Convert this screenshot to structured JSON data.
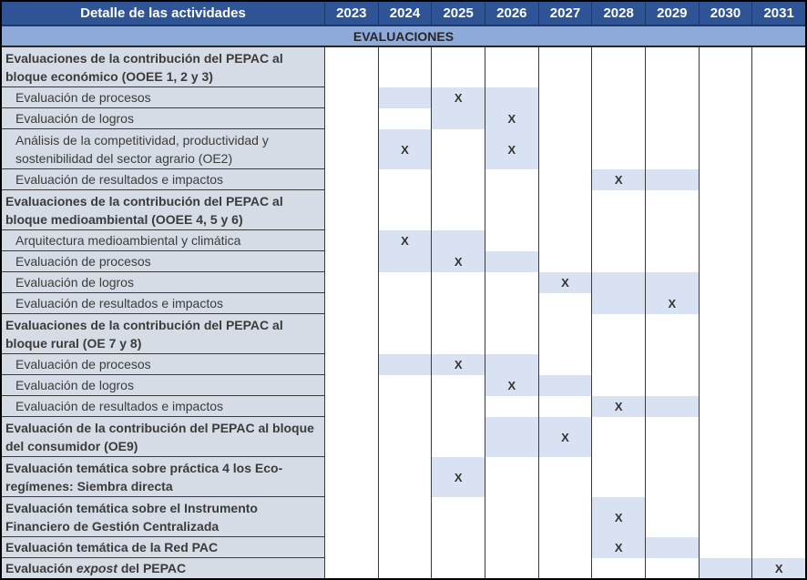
{
  "colors": {
    "header_background": "#2F5496",
    "header_text": "#FFFFFF",
    "section_background": "#8EAADB",
    "label_column_background": "#D6DCE5",
    "planned_cell_background": "#D9E2F3",
    "grid_line": "#3A3A3A",
    "body_text": "#3B3B3B"
  },
  "table": {
    "header": {
      "label": "Detalle de las actividades",
      "years": [
        "2023",
        "2024",
        "2025",
        "2026",
        "2027",
        "2028",
        "2029",
        "2030",
        "2031"
      ]
    },
    "section_title": "EVALUACIONES",
    "x_mark": "X",
    "rows": [
      {
        "label": "Evaluaciones de la contribución del PEPAC al bloque económico (OOEE 1, 2 y 3)",
        "type": "group",
        "lines": 2,
        "cells": {}
      },
      {
        "label": "Evaluación de procesos",
        "type": "item",
        "lines": 1,
        "cells": {
          "2024": "shade",
          "2025": "x",
          "2026": "shade"
        }
      },
      {
        "label": "Evaluación de logros",
        "type": "item",
        "lines": 1,
        "cells": {
          "2025": "shade",
          "2026": "x"
        }
      },
      {
        "label": "Análisis de la competitividad, productividad y sostenibilidad del sector agrario (OE2)",
        "type": "item",
        "lines": 2,
        "cells": {
          "2024": "x",
          "2026": "x"
        }
      },
      {
        "label": "Evaluación de resultados e impactos",
        "type": "item",
        "lines": 1,
        "cells": {
          "2028": "x",
          "2029": "shade"
        }
      },
      {
        "label": "Evaluaciones de la contribución del PEPAC al bloque medioambiental (OOEE 4, 5 y 6)",
        "type": "group",
        "lines": 2,
        "cells": {}
      },
      {
        "label": "Arquitectura medioambiental y climática",
        "type": "item",
        "lines": 1,
        "cells": {
          "2024": "x",
          "2025": "shade"
        }
      },
      {
        "label": "Evaluación de procesos",
        "type": "item",
        "lines": 1,
        "cells": {
          "2024": "shade",
          "2025": "x",
          "2026": "shade"
        }
      },
      {
        "label": "Evaluación de logros",
        "type": "item",
        "lines": 1,
        "cells": {
          "2027": "x",
          "2028": "shade",
          "2029": "shade"
        }
      },
      {
        "label": "Evaluación de resultados e impactos",
        "type": "item",
        "lines": 1,
        "cells": {
          "2028": "shade",
          "2029": "x"
        }
      },
      {
        "label": "Evaluaciones de la contribución del PEPAC al bloque rural (OE 7 y 8)",
        "type": "group",
        "lines": 2,
        "cells": {}
      },
      {
        "label": "Evaluación de procesos",
        "type": "item",
        "lines": 1,
        "cells": {
          "2024": "shade",
          "2025": "x",
          "2026": "shade"
        }
      },
      {
        "label": "Evaluación de logros",
        "type": "item",
        "lines": 1,
        "cells": {
          "2026": "x",
          "2027": "shade"
        }
      },
      {
        "label": "Evaluación de resultados e impactos",
        "type": "item",
        "lines": 1,
        "cells": {
          "2028": "x",
          "2029": "shade"
        }
      },
      {
        "label": "Evaluación de la contribución del PEPAC al bloque del consumidor (OE9)",
        "type": "group",
        "lines": 2,
        "cells": {
          "2026": "shade",
          "2027": "x"
        }
      },
      {
        "label": "Evaluación temática sobre práctica 4 los Eco-regímenes: Siembra directa",
        "type": "group",
        "lines": 2,
        "cells": {
          "2025": "x"
        }
      },
      {
        "label": "Evaluación temática sobre el Instrumento Financiero de Gestión Centralizada",
        "type": "group",
        "lines": 2,
        "cells": {
          "2028": "x"
        }
      },
      {
        "label": "Evaluación temática de la Red PAC",
        "type": "group",
        "lines": 1,
        "cells": {
          "2028": "x",
          "2029": "shade"
        }
      },
      {
        "label_parts": [
          {
            "t": "Evaluación ",
            "italic": false
          },
          {
            "t": "expost",
            "italic": true
          },
          {
            "t": " del PEPAC",
            "italic": false
          }
        ],
        "type": "group",
        "lines": 1,
        "cells": {
          "2030": "shade",
          "2031": "x"
        }
      }
    ]
  }
}
